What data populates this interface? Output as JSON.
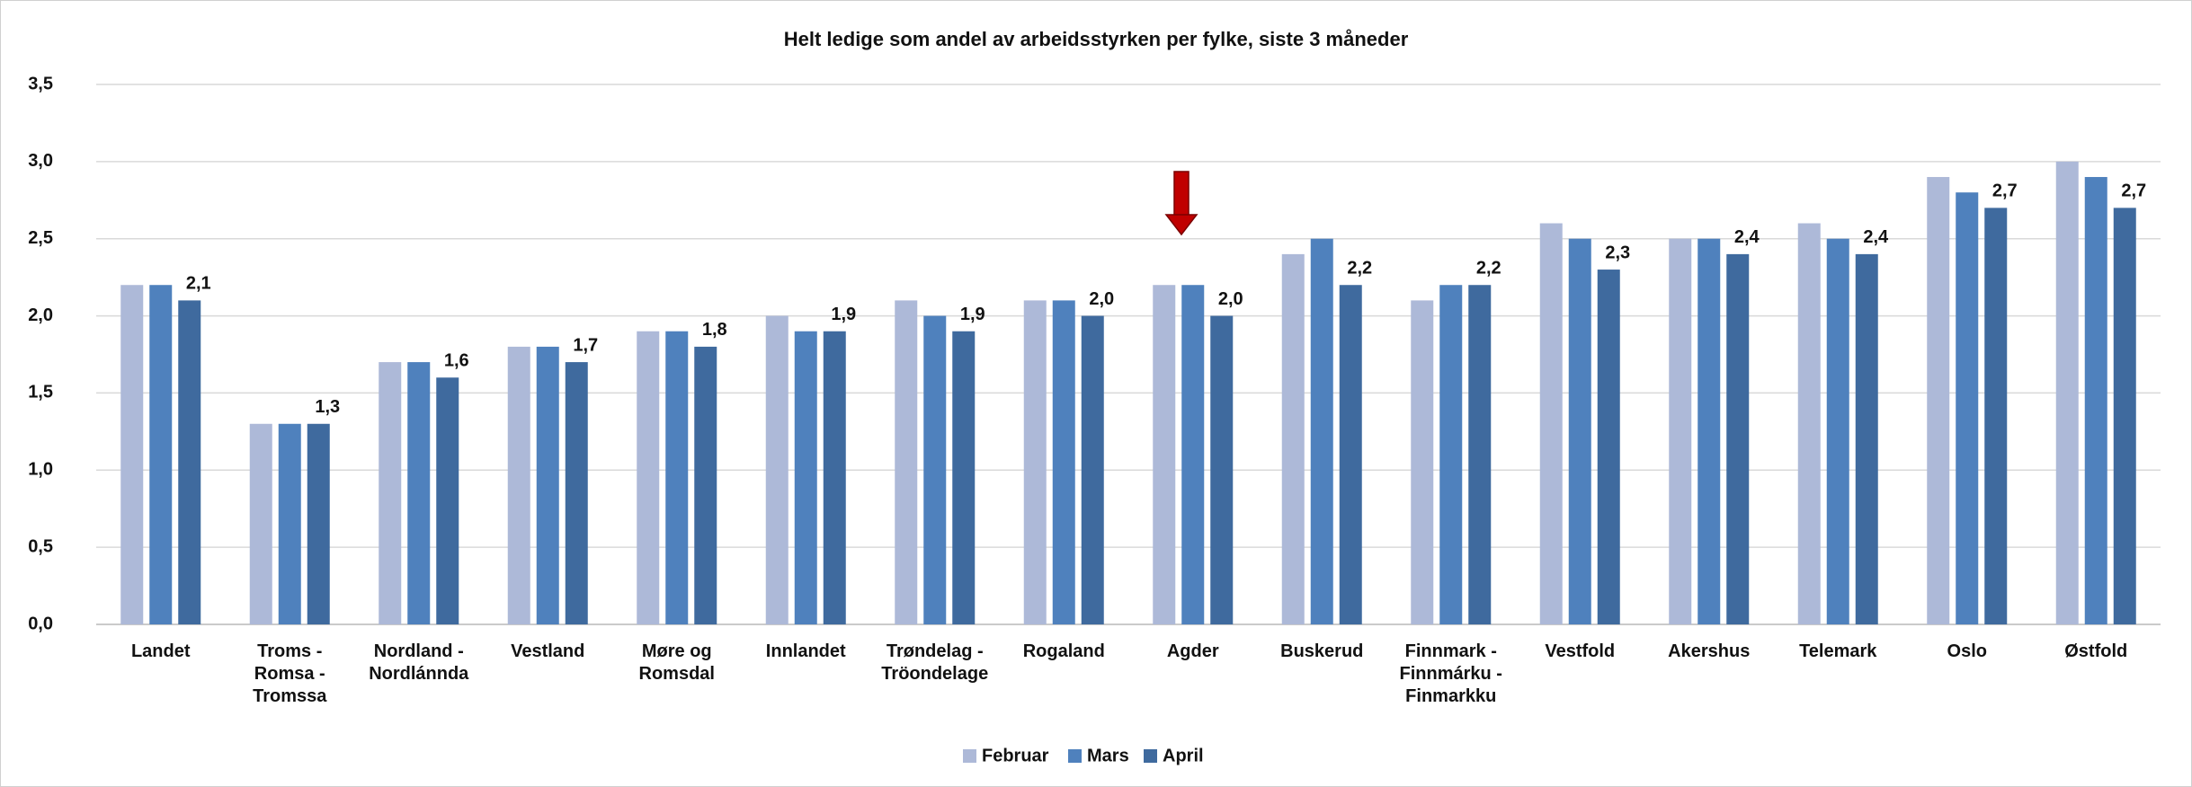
{
  "chart_data": {
    "type": "bar",
    "title": "Helt ledige som andel av arbeidsstyrken per fylke, siste 3 måneder",
    "categories": [
      "Landet",
      "Troms - Romsa - Tromssa",
      "Nordland - Nordlánnda",
      "Vestland",
      "Møre og Romsdal",
      "Innlandet",
      "Trøndelag - Tröondelage",
      "Rogaland",
      "Agder",
      "Buskerud",
      "Finnmark - Finnmárku - Finmarkku",
      "Vestfold",
      "Akershus",
      "Telemark",
      "Oslo",
      "Østfold"
    ],
    "series": [
      {
        "name": "Februar",
        "color": "#adb9d8",
        "values": [
          2.2,
          1.3,
          1.7,
          1.8,
          1.9,
          2.0,
          2.1,
          2.1,
          2.2,
          2.4,
          2.1,
          2.6,
          2.5,
          2.6,
          2.9,
          3.0
        ]
      },
      {
        "name": "Mars",
        "color": "#4f81bd",
        "values": [
          2.2,
          1.3,
          1.7,
          1.8,
          1.9,
          1.9,
          2.0,
          2.1,
          2.2,
          2.5,
          2.2,
          2.5,
          2.5,
          2.5,
          2.8,
          2.9
        ]
      },
      {
        "name": "April",
        "color": "#3f6a9e",
        "values": [
          2.1,
          1.3,
          1.6,
          1.7,
          1.8,
          1.9,
          1.9,
          2.0,
          2.0,
          2.2,
          2.2,
          2.3,
          2.4,
          2.4,
          2.7,
          2.7
        ],
        "value_labels": [
          "2,1",
          "1,3",
          "1,6",
          "1,7",
          "1,8",
          "1,9",
          "1,9",
          "2,0",
          "2,0",
          "2,2",
          "2,2",
          "2,3",
          "2,4",
          "2,4",
          "2,7",
          "2,7"
        ]
      }
    ],
    "ylim": [
      0,
      3.5
    ],
    "yticks": [
      {
        "value": 0,
        "label": "0,0"
      },
      {
        "value": 0.5,
        "label": "0,5"
      },
      {
        "value": 1,
        "label": "1,0"
      },
      {
        "value": 1.5,
        "label": "1,5"
      },
      {
        "value": 2,
        "label": "2,0"
      },
      {
        "value": 2.5,
        "label": "2,5"
      },
      {
        "value": 3,
        "label": "3,0"
      },
      {
        "value": 3.5,
        "label": "3,5"
      }
    ],
    "grid": true,
    "legend": "bottom"
  }
}
